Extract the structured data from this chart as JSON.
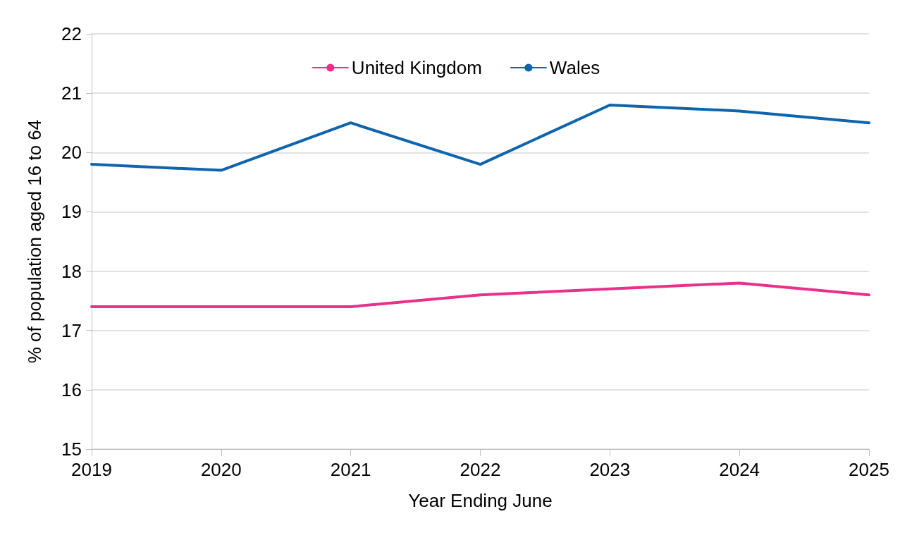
{
  "chart_data": {
    "type": "line",
    "xlabel": "Year Ending June",
    "ylabel": "% of population aged 16 to 64",
    "categories": [
      "2019",
      "2020",
      "2021",
      "2022",
      "2023",
      "2024",
      "2025"
    ],
    "series": [
      {
        "name": "United Kingdom",
        "color": "#e8318a",
        "values": [
          17.4,
          17.4,
          17.4,
          17.6,
          17.7,
          17.8,
          17.6
        ]
      },
      {
        "name": "Wales",
        "color": "#0f64ad",
        "values": [
          19.8,
          19.7,
          20.5,
          19.8,
          20.8,
          20.7,
          20.5
        ]
      }
    ],
    "ylim": [
      15,
      22
    ],
    "yticks": [
      15,
      16,
      17,
      18,
      19,
      20,
      21,
      22
    ],
    "grid": "y",
    "legend": "top",
    "marker": "none",
    "line_style": "solid"
  }
}
